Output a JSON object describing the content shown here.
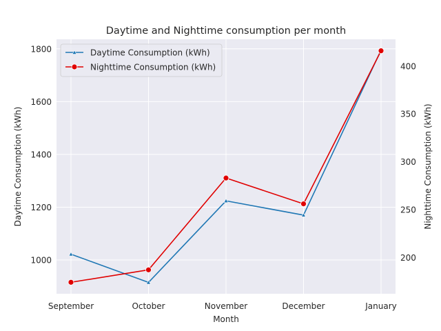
{
  "chart_data": {
    "type": "line",
    "title": "Daytime and Nighttime consumption per month",
    "xlabel": "Month",
    "ylabel_left": "Daytime Consumption (kWh)",
    "ylabel_right": "Nighttime Consumption (kWh)",
    "categories": [
      "September",
      "October",
      "November",
      "December",
      "January"
    ],
    "ylim_left": [
      872,
      1836
    ],
    "yticks_left": [
      1000,
      1200,
      1400,
      1600,
      1800
    ],
    "ylim_right": [
      162,
      428
    ],
    "yticks_right": [
      200,
      250,
      300,
      350,
      400
    ],
    "grid": true,
    "legend_position": "upper-left",
    "series": [
      {
        "name": "Daytime Consumption (kWh)",
        "axis": "left",
        "color": "#1f77b4",
        "marker": "triangle",
        "values": [
          1022,
          915,
          1224,
          1170,
          1795
        ]
      },
      {
        "name": "Nighttime Consumption (kWh)",
        "axis": "right",
        "color": "#e00000",
        "marker": "circle",
        "values": [
          174,
          187,
          283,
          256,
          416
        ]
      }
    ]
  }
}
